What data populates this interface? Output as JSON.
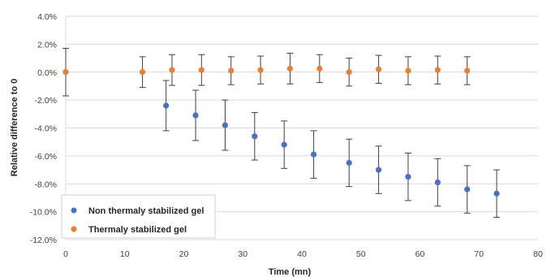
{
  "chart_data": {
    "type": "scatter",
    "xlabel": "Time (mn)",
    "ylabel": "Relative difference to 0",
    "xlim": [
      0,
      80
    ],
    "ylim": [
      -0.12,
      0.04
    ],
    "x_ticks": [
      0,
      10,
      20,
      30,
      40,
      50,
      60,
      70,
      80
    ],
    "x_tick_labels": [
      "0",
      "10",
      "20",
      "30",
      "40",
      "50",
      "60",
      "70",
      "80"
    ],
    "y_ticks": [
      0.04,
      0.02,
      0.0,
      -0.02,
      -0.04,
      -0.06,
      -0.08,
      -0.1,
      -0.12
    ],
    "y_tick_labels": [
      "4.0%",
      "2.0%",
      "0.0%",
      "-2.0%",
      "-4.0%",
      "-6.0%",
      "-8.0%",
      "-10.0%",
      "-12.0%"
    ],
    "grid": "horizontal",
    "legend_position": "bottom-left",
    "series": [
      {
        "name": "Non thermaly stabilized gel",
        "color": "#4472c4",
        "x": [
          0,
          17,
          22,
          27,
          32,
          37,
          42,
          48,
          53,
          58,
          63,
          68,
          73
        ],
        "y": [
          0.0,
          -0.024,
          -0.031,
          -0.038,
          -0.046,
          -0.052,
          -0.059,
          -0.065,
          -0.07,
          -0.075,
          -0.079,
          -0.084,
          -0.087
        ],
        "err": [
          0.0,
          0.018,
          0.018,
          0.018,
          0.017,
          0.017,
          0.017,
          0.017,
          0.017,
          0.017,
          0.017,
          0.017,
          0.017
        ]
      },
      {
        "name": "Thermaly stabilized gel",
        "color": "#ed7d31",
        "x": [
          0,
          13,
          18,
          23,
          28,
          33,
          38,
          43,
          48,
          53,
          58,
          63,
          68
        ],
        "y": [
          0.0,
          0.0,
          0.0015,
          0.0015,
          0.001,
          0.0015,
          0.0025,
          0.0025,
          0.0,
          0.002,
          0.001,
          0.0015,
          0.001
        ],
        "err": [
          0.017,
          0.011,
          0.011,
          0.011,
          0.01,
          0.01,
          0.011,
          0.01,
          0.01,
          0.01,
          0.01,
          0.01,
          0.01
        ]
      }
    ]
  }
}
